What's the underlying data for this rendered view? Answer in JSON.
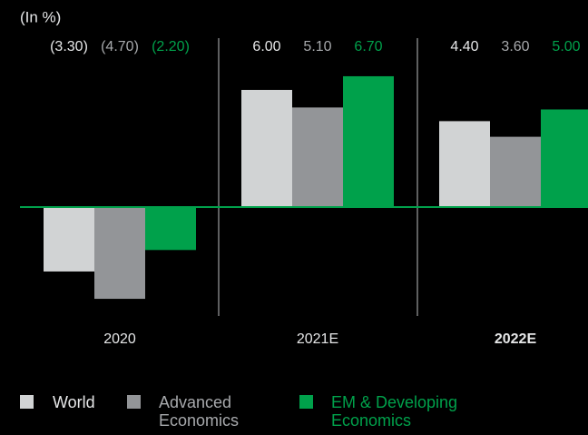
{
  "chart_data": {
    "type": "bar",
    "subtitle": "(In %)",
    "categories": [
      "2020",
      "2021E",
      "2022E"
    ],
    "highlight_index": 2,
    "series": [
      {
        "name": "World",
        "color": "#d1d3d4",
        "label_color": "#e6e7e8",
        "values": [
          -3.3,
          6,
          4.4
        ],
        "value_labels": [
          "(3.30)",
          "6.00",
          "4.40"
        ]
      },
      {
        "name": "Advanced Economics",
        "color": "#939598",
        "label_color": "#a7a9ac",
        "values": [
          -4.7,
          5.1,
          3.6
        ],
        "value_labels": [
          "(4.70)",
          "5.10",
          "3.60"
        ]
      },
      {
        "name": "EM & Developing Economics",
        "color": "#00a14b",
        "label_color": "#00a14b",
        "values": [
          -2.2,
          6.7,
          5
        ],
        "value_labels": [
          "(2.20)",
          "6.70",
          "5.00"
        ]
      }
    ],
    "ylim": [
      -5,
      7
    ]
  }
}
